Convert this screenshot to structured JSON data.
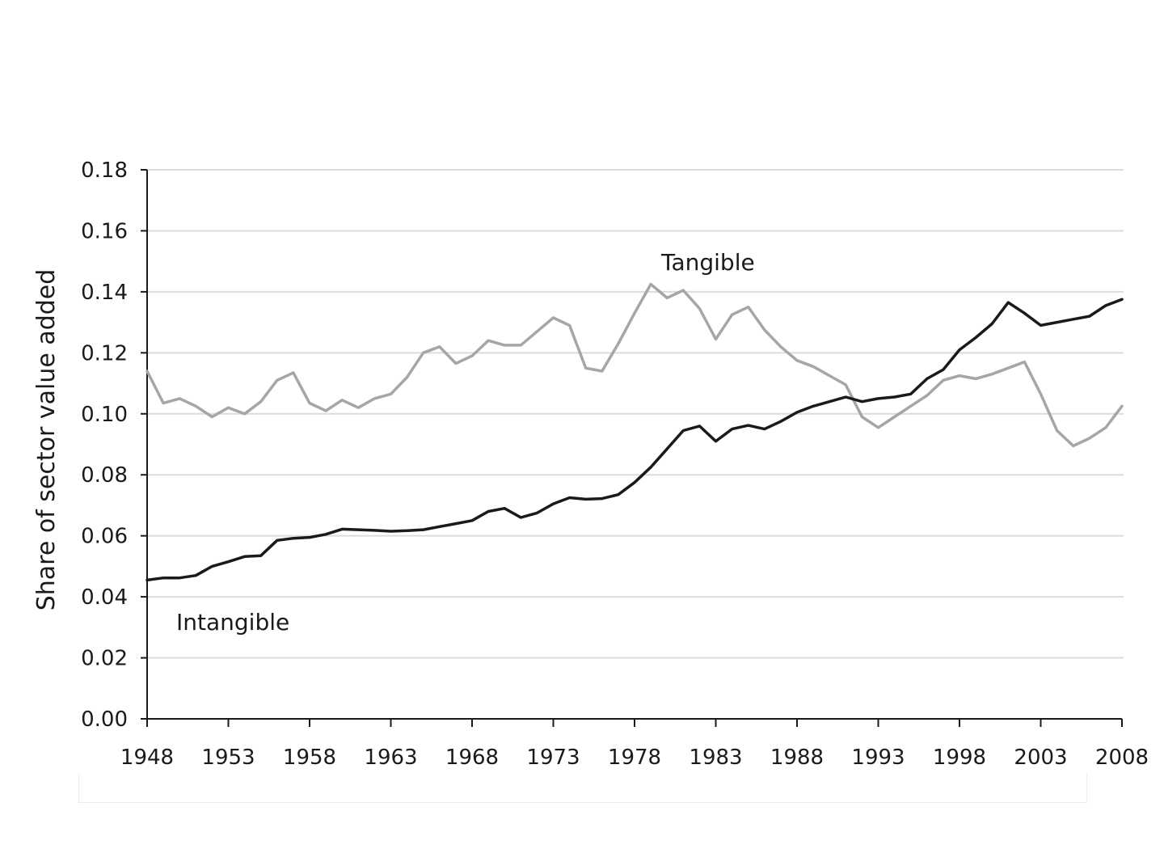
{
  "chart_data": {
    "type": "line",
    "title": "",
    "xlabel": "",
    "ylabel": "Share of sector value added",
    "xlim": [
      1948,
      2008
    ],
    "ylim": [
      0,
      0.18
    ],
    "x_ticks": [
      1948,
      1953,
      1958,
      1963,
      1968,
      1973,
      1978,
      1983,
      1988,
      1993,
      1998,
      2003,
      2008
    ],
    "y_ticks": [
      "0.00",
      "0.02",
      "0.04",
      "0.06",
      "0.08",
      "0.10",
      "0.12",
      "0.14",
      "0.16",
      "0.18"
    ],
    "grid": true,
    "legend": "none",
    "series": [
      {
        "name": "Tangible",
        "color": "#a6a6a6",
        "x": [
          1948,
          1949,
          1950,
          1951,
          1952,
          1953,
          1954,
          1955,
          1956,
          1957,
          1958,
          1959,
          1960,
          1961,
          1962,
          1963,
          1964,
          1965,
          1966,
          1967,
          1968,
          1969,
          1970,
          1971,
          1972,
          1973,
          1974,
          1975,
          1976,
          1977,
          1978,
          1979,
          1980,
          1981,
          1982,
          1983,
          1984,
          1985,
          1986,
          1987,
          1988,
          1989,
          1990,
          1991,
          1992,
          1993,
          1994,
          1995,
          1996,
          1997,
          1998,
          1999,
          2000,
          2001,
          2002,
          2003,
          2004,
          2005,
          2006,
          2007,
          2008
        ],
        "values": [
          0.114,
          0.1035,
          0.105,
          0.1025,
          0.099,
          0.102,
          0.1,
          0.104,
          0.111,
          0.1135,
          0.1035,
          0.101,
          0.1045,
          0.102,
          0.105,
          0.1065,
          0.112,
          0.12,
          0.122,
          0.1165,
          0.119,
          0.124,
          0.1225,
          0.1225,
          0.127,
          0.1315,
          0.129,
          0.115,
          0.114,
          0.123,
          0.133,
          0.1425,
          0.138,
          0.1405,
          0.1345,
          0.1245,
          0.1325,
          0.135,
          0.1275,
          0.122,
          0.1175,
          0.1155,
          0.1125,
          0.1095,
          0.099,
          0.0955,
          0.099,
          0.1025,
          0.106,
          0.111,
          0.1125,
          0.1115,
          0.113,
          0.115,
          0.117,
          0.1065,
          0.0945,
          0.0895,
          0.092,
          0.0955,
          0.1025
        ]
      },
      {
        "name": "Intangible",
        "color": "#1a1a1a",
        "x": [
          1948,
          1949,
          1950,
          1951,
          1952,
          1953,
          1954,
          1955,
          1956,
          1957,
          1958,
          1959,
          1960,
          1961,
          1962,
          1963,
          1964,
          1965,
          1966,
          1967,
          1968,
          1969,
          1970,
          1971,
          1972,
          1973,
          1974,
          1975,
          1976,
          1977,
          1978,
          1979,
          1980,
          1981,
          1982,
          1983,
          1984,
          1985,
          1986,
          1987,
          1988,
          1989,
          1990,
          1991,
          1992,
          1993,
          1994,
          1995,
          1996,
          1997,
          1998,
          1999,
          2000,
          2001,
          2002,
          2003,
          2004,
          2005,
          2006,
          2007,
          2008
        ],
        "values": [
          0.0455,
          0.0462,
          0.0462,
          0.047,
          0.05,
          0.0515,
          0.0532,
          0.0535,
          0.0585,
          0.0592,
          0.0595,
          0.0605,
          0.0622,
          0.062,
          0.0618,
          0.0615,
          0.0617,
          0.062,
          0.063,
          0.064,
          0.065,
          0.068,
          0.069,
          0.066,
          0.0675,
          0.0705,
          0.0725,
          0.072,
          0.0722,
          0.0735,
          0.0775,
          0.0825,
          0.0885,
          0.0945,
          0.096,
          0.091,
          0.095,
          0.0962,
          0.095,
          0.0975,
          0.1005,
          0.1025,
          0.104,
          0.1055,
          0.104,
          0.105,
          0.1055,
          0.1065,
          0.1115,
          0.1145,
          0.121,
          0.125,
          0.1295,
          0.1365,
          0.133,
          0.129,
          0.13,
          0.131,
          0.132,
          0.1355,
          0.1375
        ]
      }
    ],
    "annotations": [
      {
        "text": "Tangible",
        "series": "Tangible"
      },
      {
        "text": "Intangible",
        "series": "Intangible"
      }
    ]
  }
}
